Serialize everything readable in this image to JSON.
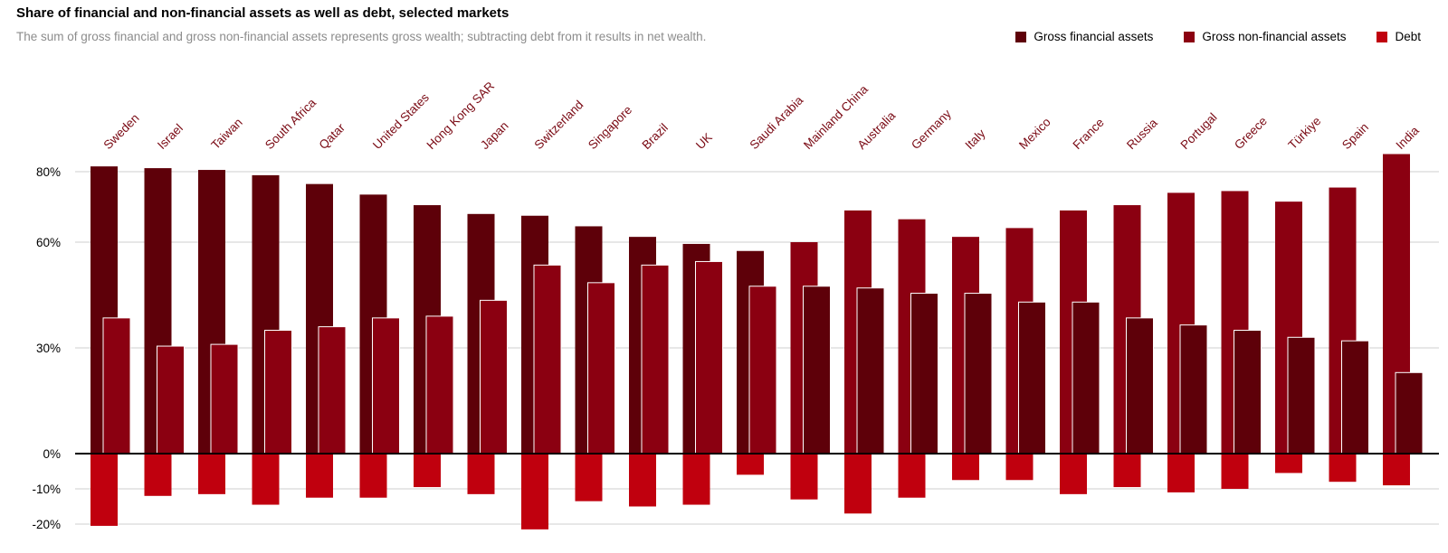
{
  "title": "Share of financial and non-financial assets as well as debt, selected markets",
  "subtitle": "The sum of gross financial and gross non-financial assets represents gross wealth; subtracting debt from it results in net wealth.",
  "legend": [
    {
      "label": "Gross financial assets",
      "color": "#5e0009"
    },
    {
      "label": "Gross non-financial assets",
      "color": "#8b0011"
    },
    {
      "label": "Debt",
      "color": "#c0000e"
    }
  ],
  "colors": {
    "financial": "#5e0009",
    "nonfinancial": "#8b0011",
    "debt": "#c0000e",
    "grid": "#cfcfcf",
    "axis": "#000000"
  },
  "chart_data": {
    "type": "bar",
    "categories": [
      "Sweden",
      "Israel",
      "Taiwan",
      "South Africa",
      "Qatar",
      "United States",
      "Hong Kong SAR",
      "Japan",
      "Switzerland",
      "Singapore",
      "Brazil",
      "UK",
      "Saudi Arabia",
      "Mainland China",
      "Australia",
      "Germany",
      "Italy",
      "Mexico",
      "France",
      "Russia",
      "Portugal",
      "Greece",
      "Türkiye",
      "Spain",
      "India"
    ],
    "series": [
      {
        "name": "Gross financial assets",
        "values": [
          81.5,
          81,
          80.5,
          79,
          76.5,
          73.5,
          70.5,
          68,
          67.5,
          64.5,
          61.5,
          59.5,
          57.5,
          47.5,
          47,
          45.5,
          45.5,
          43,
          43,
          38.5,
          36.5,
          35,
          33,
          32,
          23
        ]
      },
      {
        "name": "Gross non-financial assets",
        "values": [
          38.5,
          30.5,
          31,
          35,
          36,
          38.5,
          39,
          43.5,
          53.5,
          48.5,
          53.5,
          54.5,
          47.5,
          60,
          69,
          66.5,
          61.5,
          64,
          69,
          70.5,
          74,
          74.5,
          71.5,
          75.5,
          85
        ]
      },
      {
        "name": "Debt",
        "values": [
          -20.5,
          -12,
          -11.5,
          -14.5,
          -12.5,
          -12.5,
          -9.5,
          -11.5,
          -21.5,
          -13.5,
          -15,
          -14.5,
          -6,
          -13,
          -17,
          -12.5,
          -7.5,
          -7.5,
          -11.5,
          -9.5,
          -11,
          -10,
          -5.5,
          -8,
          -9
        ]
      }
    ],
    "y_ticks": [
      {
        "value": 80,
        "label": "80%"
      },
      {
        "value": 60,
        "label": "60%"
      },
      {
        "value": 30,
        "label": "30%"
      },
      {
        "value": 0,
        "label": "0%"
      },
      {
        "value": -10,
        "label": "-10%"
      },
      {
        "value": -20,
        "label": "-20%"
      }
    ],
    "ylim": [
      -21.5,
      85
    ],
    "grid": true,
    "legend_position": "top-right"
  }
}
